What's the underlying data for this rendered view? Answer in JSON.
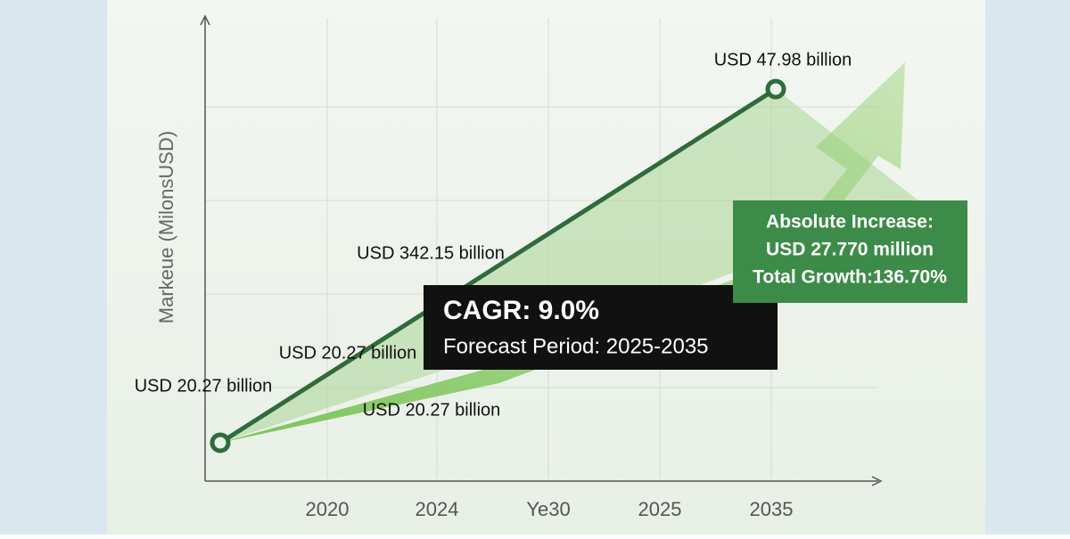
{
  "chart_data": {
    "type": "line",
    "y_label": "Markeue (MilonsUSD)",
    "categories": [
      "2020",
      "2024",
      "Ye30",
      "2025",
      "2035"
    ],
    "annotations": [
      "USD 47.98 billion",
      "USD 342.15 billion",
      "USD 20.27 billion",
      "USD 20.27 billion",
      "USD 20.27 billion"
    ],
    "cagr_box": {
      "title": "CAGR: 9.0%",
      "subtitle": "Forecast Period: 2025-2035"
    },
    "increase_box": {
      "lines": [
        "Absolute Increase:",
        "USD 27.770 million",
        "Total Growth:136.70%"
      ]
    }
  }
}
